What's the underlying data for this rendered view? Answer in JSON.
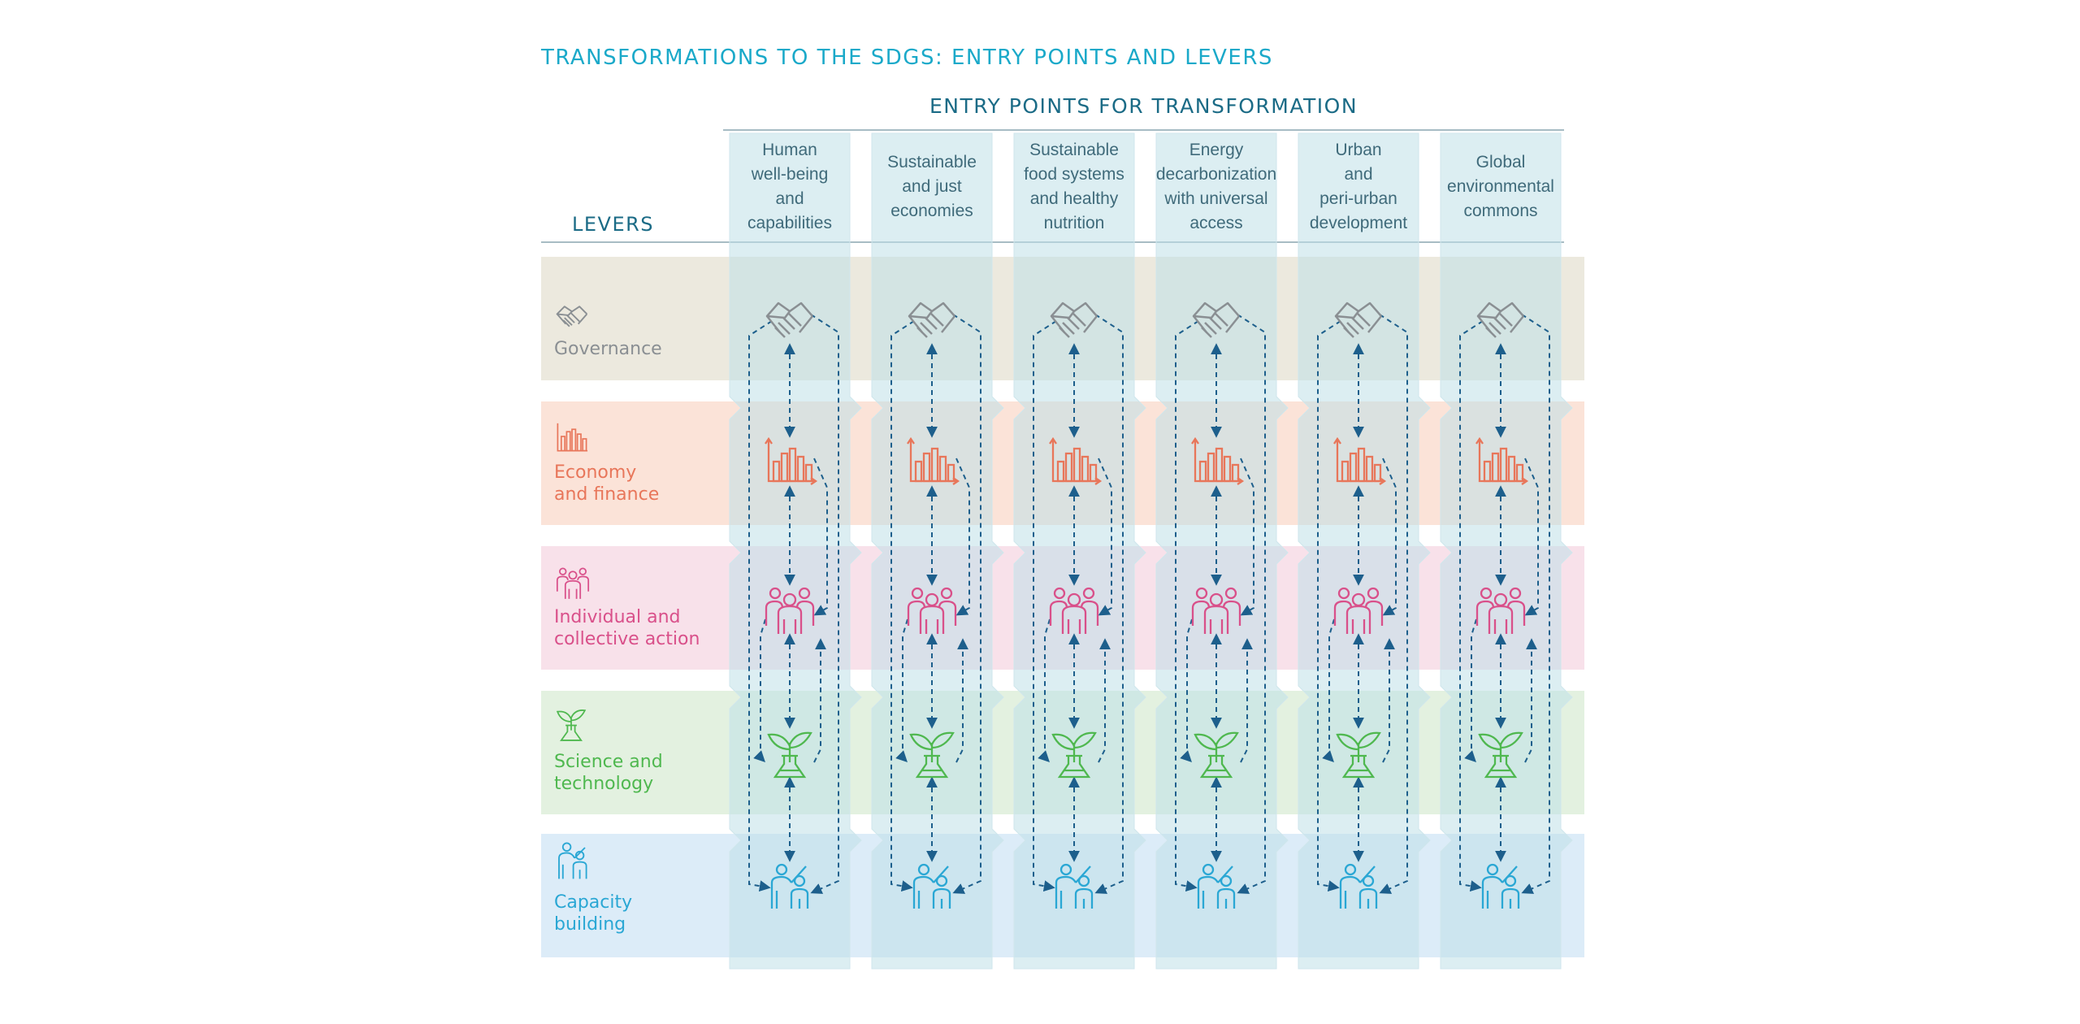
{
  "title": "TRANSFORMATIONS TO THE SDGS: ENTRY POINTS AND LEVERS",
  "entry_points_title": "ENTRY POINTS FOR TRANSFORMATION",
  "levers_title": "LEVERS",
  "entry_points": [
    "Human\nwell-being\nand\ncapabilities",
    "Sustainable\nand just\neconomies",
    "Sustainable\nfood systems\nand healthy\nnutrition",
    "Energy\ndecarbonization\nwith universal\naccess",
    "Urban\nand\nperi-urban\ndevelopment",
    "Global\nenvironmental\ncommons"
  ],
  "levers": [
    {
      "label": "Governance",
      "icon": "handshake-icon",
      "color": "#8a8f93",
      "band": "#ece9de"
    },
    {
      "label": "Economy\nand finance",
      "icon": "bar-chart-icon",
      "color": "#e8765a",
      "band": "#fbe3d8"
    },
    {
      "label": "Individual and\ncollective action",
      "icon": "people-group-icon",
      "color": "#d9508a",
      "band": "#f8e1ea"
    },
    {
      "label": "Science and\ntechnology",
      "icon": "plant-flask-icon",
      "color": "#4fb84f",
      "band": "#e3f1e0"
    },
    {
      "label": "Capacity\nbuilding",
      "icon": "teacher-student-icon",
      "color": "#2aa7d4",
      "band": "#dcecf8"
    }
  ],
  "colors": {
    "title": "#1aa9c9",
    "header": "#1b6b86",
    "arrow": "#1d5f8c",
    "column": "#bfe0e8"
  }
}
